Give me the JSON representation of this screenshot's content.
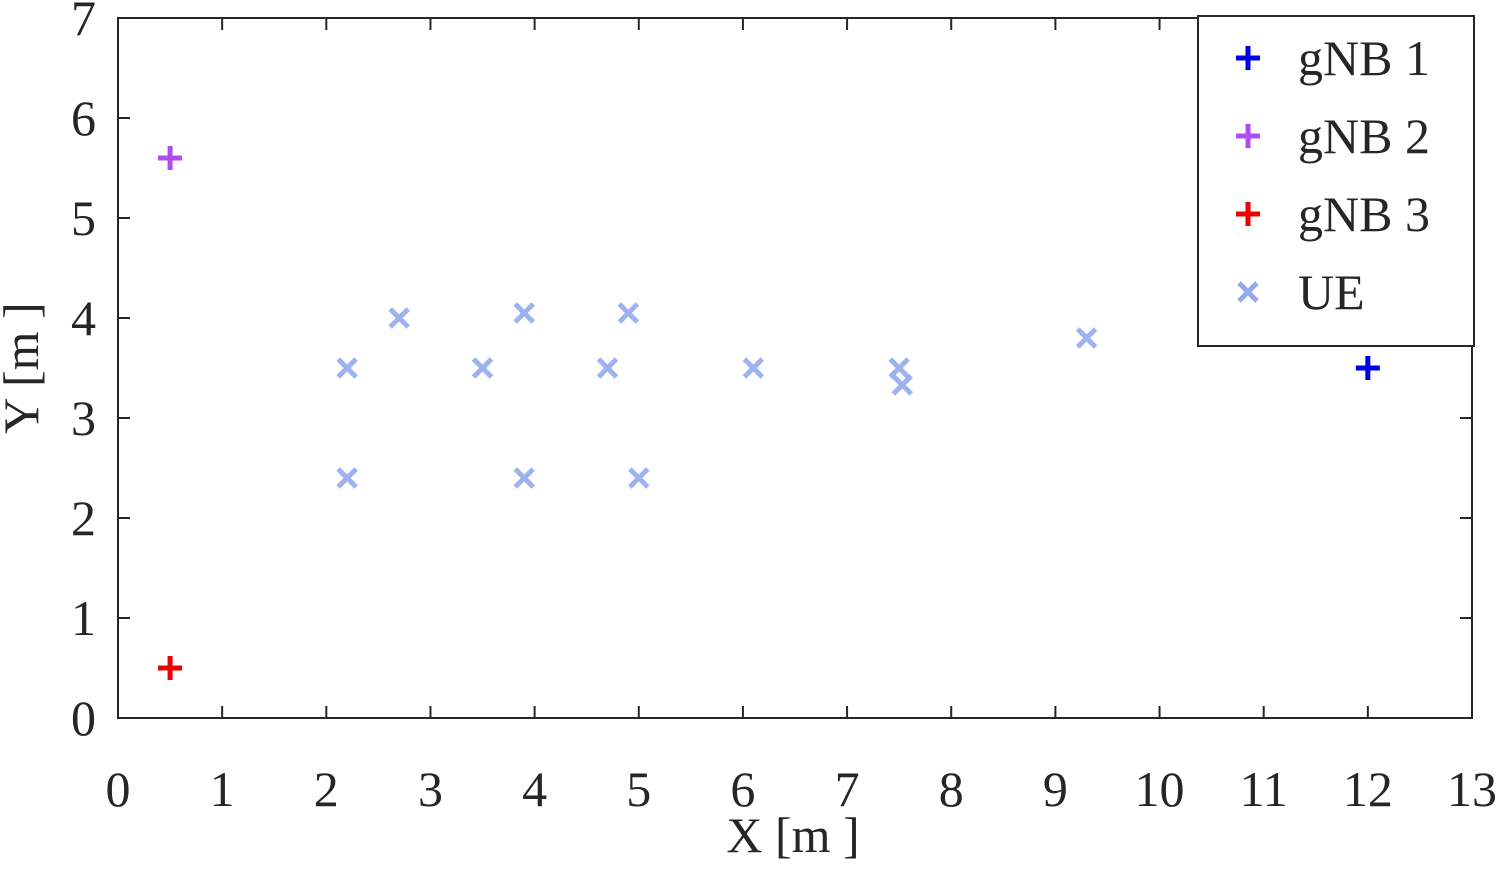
{
  "chart_data": {
    "type": "scatter",
    "xlabel": "X [m ]",
    "ylabel": "Y [m ]",
    "xlim": [
      0,
      13
    ],
    "ylim": [
      0,
      7
    ],
    "xticks": [
      0,
      1,
      2,
      3,
      4,
      5,
      6,
      7,
      8,
      9,
      10,
      11,
      12,
      13
    ],
    "yticks": [
      0,
      1,
      2,
      3,
      4,
      5,
      6,
      7
    ],
    "legend": "top-right",
    "series": [
      {
        "name": "gNB 1",
        "color": "#0000e6",
        "marker": "+",
        "x": [
          12
        ],
        "y": [
          3.5
        ]
      },
      {
        "name": "gNB 2",
        "color": "#b04cf0",
        "marker": "+",
        "x": [
          0.5
        ],
        "y": [
          5.6
        ]
      },
      {
        "name": "gNB 3",
        "color": "#ee0000",
        "marker": "+",
        "x": [
          0.5
        ],
        "y": [
          0.5
        ]
      },
      {
        "name": "UE",
        "color": "#93aaee",
        "marker": "x",
        "x": [
          2.2,
          2.2,
          2.7,
          3.5,
          3.9,
          3.9,
          4.7,
          4.9,
          5.0,
          6.1,
          7.5,
          7.53,
          9.3
        ],
        "y": [
          3.5,
          2.4,
          4.0,
          3.5,
          4.05,
          2.4,
          3.5,
          4.05,
          2.4,
          3.5,
          3.5,
          3.33,
          3.8
        ]
      }
    ]
  }
}
